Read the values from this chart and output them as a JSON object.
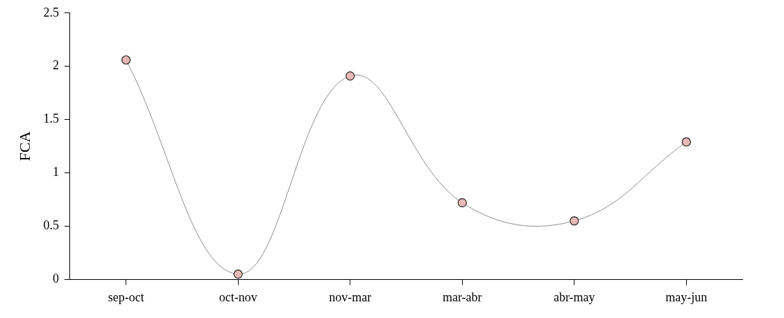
{
  "chart_data": {
    "type": "line",
    "ylabel": "FCA",
    "categories": [
      "sep-oct",
      "oct-nov",
      "nov-mar",
      "mar-abr",
      "abr-may",
      "may-jun"
    ],
    "series": [
      {
        "color": "#e6b8b7",
        "values": [
          2.06,
          0.05,
          1.91,
          0.72,
          0.55,
          1.29
        ]
      }
    ],
    "ylim": [
      0,
      2.5
    ],
    "yticks": [
      0,
      0.5,
      1,
      1.5,
      2,
      2.5
    ],
    "grid": false,
    "legend": false,
    "marker": "circle",
    "line_style": "solid"
  }
}
